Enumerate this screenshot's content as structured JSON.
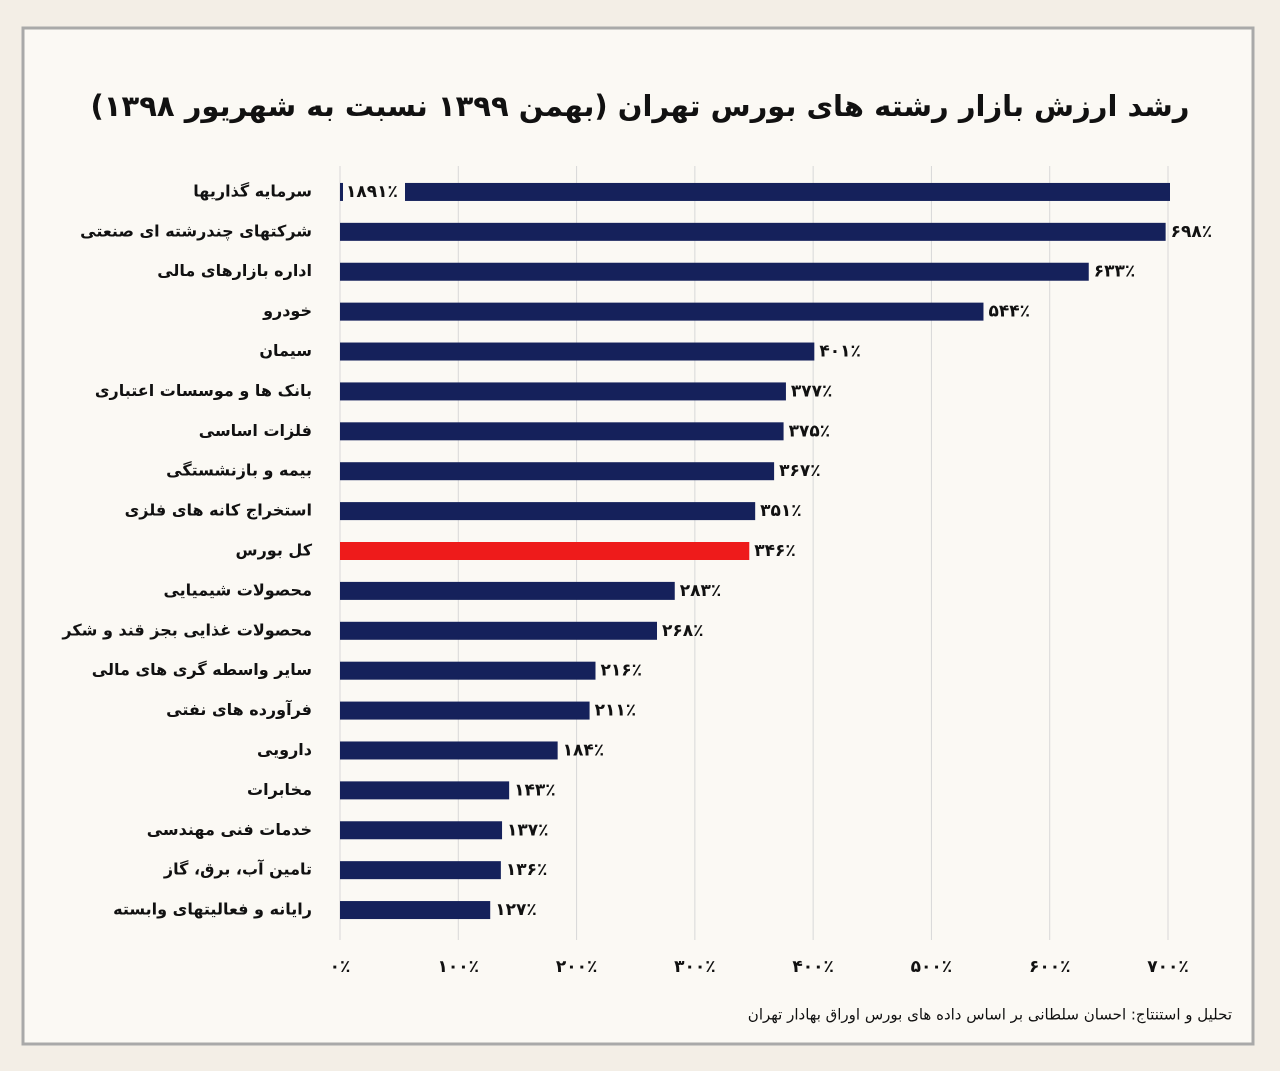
{
  "chart_data": {
    "type": "bar",
    "orientation": "horizontal",
    "title": "رشد ارزش بازار رشته های بورس تهران (بهمن ۱۳۹۹ نسبت به شهریور ۱۳۹۸)",
    "categories": [
      "سرمایه گذاریها",
      "شرکتهای چندرشته ای صنعتی",
      "اداره بازارهای مالی",
      "خودرو",
      "سیمان",
      "بانک ها و موسسات اعتباری",
      "فلزات اساسی",
      "بیمه و بازنشستگی",
      "استخراج کانه های فلزی",
      "کل بورس",
      "محصولات شیمیایی",
      "محصولات غذایی بجز قند و شکر",
      "سایر واسطه گری های مالی",
      "فرآورده های نفتی",
      "دارویی",
      "مخابرات",
      "خدمات فنی مهندسی",
      "تامین آب، برق، گاز",
      "رایانه و فعالیتهای وابسته"
    ],
    "values": [
      1891,
      698,
      633,
      544,
      401,
      377,
      375,
      367,
      351,
      346,
      283,
      268,
      216,
      211,
      184,
      143,
      137,
      136,
      127
    ],
    "value_labels": [
      "۱۸۹۱٪",
      "۶۹۸٪",
      "۶۳۳٪",
      "۵۴۴٪",
      "۴۰۱٪",
      "۳۷۷٪",
      "۳۷۵٪",
      "۳۶۷٪",
      "۳۵۱٪",
      "۳۴۶٪",
      "۲۸۳٪",
      "۲۶۸٪",
      "۲۱۶٪",
      "۲۱۱٪",
      "۱۸۴٪",
      "۱۴۳٪",
      "۱۳۷٪",
      "۱۳۶٪",
      "۱۲۷٪"
    ],
    "colors": [
      "#15215b",
      "#15215b",
      "#15215b",
      "#15215b",
      "#15215b",
      "#15215b",
      "#15215b",
      "#15215b",
      "#15215b",
      "#ee1b1b",
      "#15215b",
      "#15215b",
      "#15215b",
      "#15215b",
      "#15215b",
      "#15215b",
      "#15215b",
      "#15215b",
      "#15215b"
    ],
    "xlim": [
      0,
      700
    ],
    "xticks": [
      {
        "value": 0,
        "label": "۰٪"
      },
      {
        "value": 100,
        "label": "۱۰۰٪"
      },
      {
        "value": 200,
        "label": "۲۰۰٪"
      },
      {
        "value": 300,
        "label": "۳۰۰٪"
      },
      {
        "value": 400,
        "label": "۴۰۰٪"
      },
      {
        "value": 500,
        "label": "۵۰۰٪"
      },
      {
        "value": 600,
        "label": "۶۰۰٪"
      },
      {
        "value": 700,
        "label": "۷۰۰٪"
      }
    ],
    "grid": true,
    "source": "تحلیل و استنتاج: احسان سلطانی بر اساس داده های بورس اوراق بهادار تهران"
  }
}
